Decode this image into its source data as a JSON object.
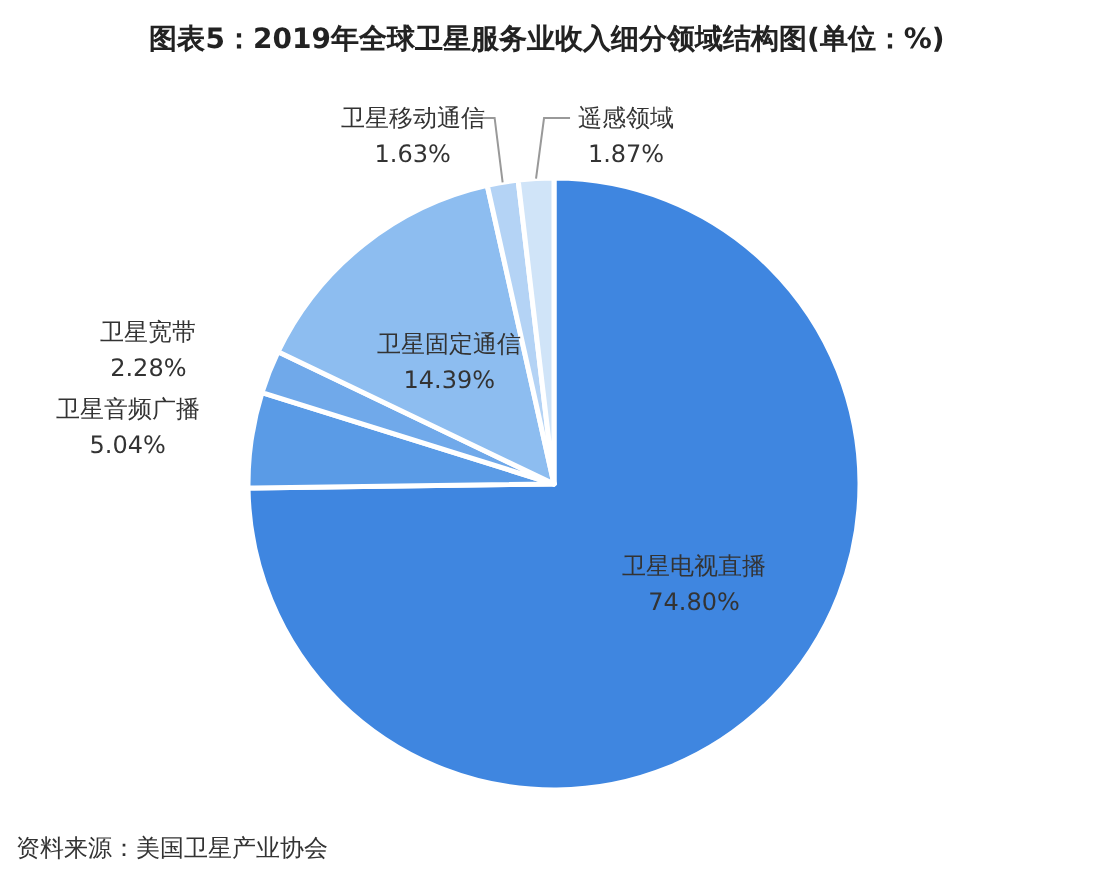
{
  "chart_data": {
    "type": "pie",
    "title": "图表5：2019年全球卫星服务业收入细分领域结构图(单位：%)",
    "categories": [
      "卫星电视直播",
      "卫星音频广播",
      "卫星宽带",
      "卫星固定通信",
      "卫星移动通信",
      "遥感领域"
    ],
    "values": [
      74.8,
      5.04,
      2.28,
      14.39,
      1.63,
      1.87
    ],
    "value_labels": [
      "74.80%",
      "5.04%",
      "2.28%",
      "14.39%",
      "1.63%",
      "1.87%"
    ],
    "colors": [
      "#3f86e0",
      "#5a9be6",
      "#70a9ea",
      "#8dbdf0",
      "#b4d3f5",
      "#d0e4f8"
    ],
    "annotations": [
      "资料来源：美国卫星产业协会"
    ]
  }
}
